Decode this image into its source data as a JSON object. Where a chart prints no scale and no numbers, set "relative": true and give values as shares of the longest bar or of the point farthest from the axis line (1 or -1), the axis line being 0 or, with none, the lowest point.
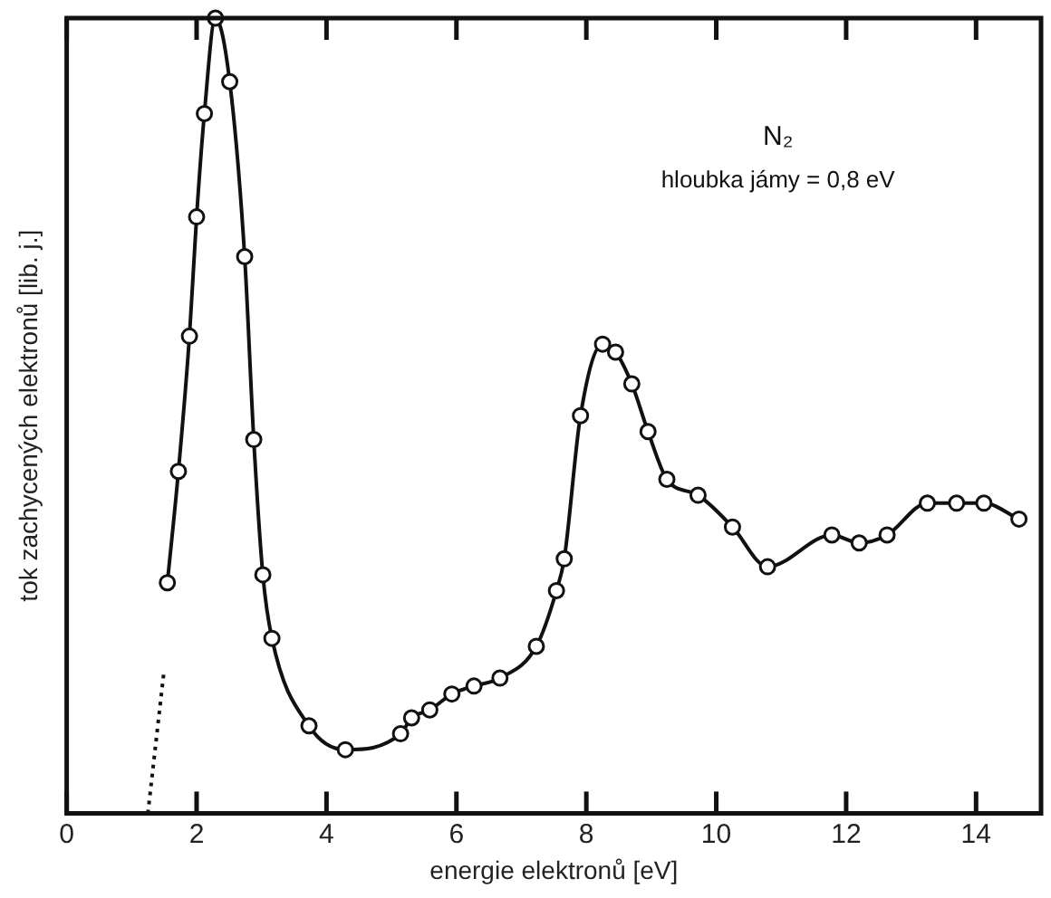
{
  "chart_data": {
    "type": "line",
    "relative": true,
    "xlabel": "energie elektronů [eV]",
    "ylabel": "tok zachycených elektronů [lib. j.]",
    "annotations": [
      "N₂",
      "hloubka jámy = 0,8 eV"
    ],
    "xlim": [
      0,
      15
    ],
    "xticks": [
      0,
      2,
      4,
      6,
      8,
      10,
      12,
      14
    ],
    "grid": false,
    "legend": false,
    "series": [
      {
        "color": "#111111",
        "marker": "circle",
        "line_style": "solid",
        "x": [
          1.55,
          1.72,
          1.89,
          2.0,
          2.12,
          2.29,
          2.51,
          2.74,
          2.88,
          3.02,
          3.16,
          3.73,
          4.29,
          5.14,
          5.31,
          5.59,
          5.93,
          6.27,
          6.67,
          7.23,
          7.54,
          7.66,
          7.91,
          8.25,
          8.45,
          8.7,
          8.95,
          9.24,
          9.72,
          10.25,
          10.79,
          11.78,
          12.2,
          12.63,
          13.25,
          13.7,
          14.12,
          14.66
        ],
        "values": [
          0.29,
          0.43,
          0.6,
          0.75,
          0.88,
          1.0,
          0.92,
          0.7,
          0.47,
          0.3,
          0.22,
          0.11,
          0.08,
          0.1,
          0.12,
          0.13,
          0.15,
          0.16,
          0.17,
          0.21,
          0.28,
          0.32,
          0.5,
          0.59,
          0.58,
          0.54,
          0.48,
          0.42,
          0.4,
          0.36,
          0.31,
          0.35,
          0.34,
          0.35,
          0.39,
          0.39,
          0.39,
          0.37
        ]
      },
      {
        "color": "#111111",
        "marker": "none",
        "line_style": "dotted",
        "x": [
          1.25,
          1.5
        ],
        "values": [
          0,
          0.18
        ]
      }
    ]
  }
}
